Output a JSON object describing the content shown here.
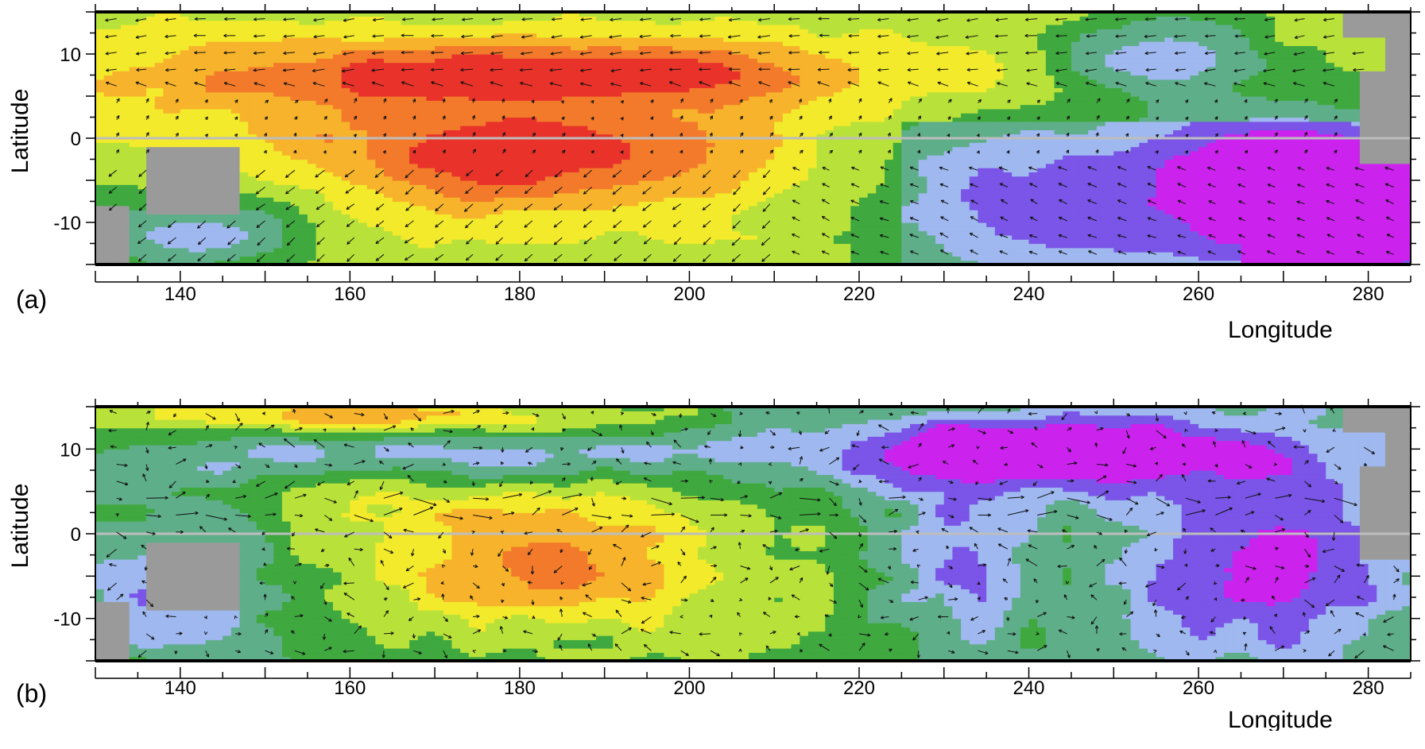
{
  "figure": {
    "panels": [
      {
        "letter": "(a)",
        "ylabel": "Latitude",
        "xlabel": "Longitude"
      },
      {
        "letter": "(b)",
        "ylabel": "Latitude",
        "xlabel": "Longitude"
      }
    ]
  },
  "chart_data": [
    {
      "type": "heatmap",
      "panel": "(a)",
      "xlabel": "Longitude",
      "ylabel": "Latitude",
      "xlim": [
        130,
        285
      ],
      "ylim": [
        -15,
        15
      ],
      "x_ticks": [
        140,
        160,
        180,
        200,
        220,
        240,
        260,
        280
      ],
      "y_ticks": [
        10,
        0,
        -10
      ],
      "y_tick_labels": [
        "10",
        "0",
        "-10"
      ],
      "grid": false,
      "overlay": "wind/current vectors (quiver)",
      "land_color": "#9a9a9a",
      "equator_line_color": "#bdbdbd",
      "colormap": [
        "#cc22ee",
        "#7a55e8",
        "#9fb8ef",
        "#5fae8a",
        "#3fa83f",
        "#b8e23a",
        "#f2ea2a",
        "#f7b32b",
        "#f27a2a",
        "#e8322a"
      ],
      "field_description_regions": [
        {
          "lon_min": 160,
          "lon_max": 205,
          "lat_min": -8,
          "lat_max": 10,
          "level": "high (red)"
        },
        {
          "lon_min": 230,
          "lon_max": 255,
          "lat_min": -15,
          "lat_max": 0,
          "level": "mid (green)"
        },
        {
          "lon_min": 260,
          "lon_max": 285,
          "lat_min": -15,
          "lat_max": 0,
          "level": "low (purple)"
        }
      ]
    },
    {
      "type": "heatmap",
      "panel": "(b)",
      "xlabel": "Longitude",
      "ylabel": "Latitude",
      "xlim": [
        130,
        285
      ],
      "ylim": [
        -15,
        15
      ],
      "x_ticks": [
        140,
        160,
        180,
        200,
        220,
        240,
        260,
        280
      ],
      "y_ticks": [
        10,
        0,
        -10
      ],
      "y_tick_labels": [
        "10",
        "0",
        "-10"
      ],
      "grid": false,
      "overlay": "wind/current vectors (quiver)",
      "land_color": "#9a9a9a",
      "equator_line_color": "#bdbdbd",
      "colormap": [
        "#cc22ee",
        "#7a55e8",
        "#9fb8ef",
        "#5fae8a",
        "#3fa83f",
        "#b8e23a",
        "#f2ea2a",
        "#f7b32b",
        "#f27a2a",
        "#e8322a"
      ],
      "field_description_regions": [
        {
          "lon_min": 165,
          "lon_max": 205,
          "lat_min": -10,
          "lat_max": 3,
          "level": "high (orange/red)"
        },
        {
          "lon_min": 225,
          "lon_max": 240,
          "lat_min": -15,
          "lat_max": 5,
          "level": "mid (green)"
        },
        {
          "lon_min": 210,
          "lon_max": 285,
          "lat_min": 5,
          "lat_max": 15,
          "level": "low (purple)"
        }
      ]
    }
  ]
}
